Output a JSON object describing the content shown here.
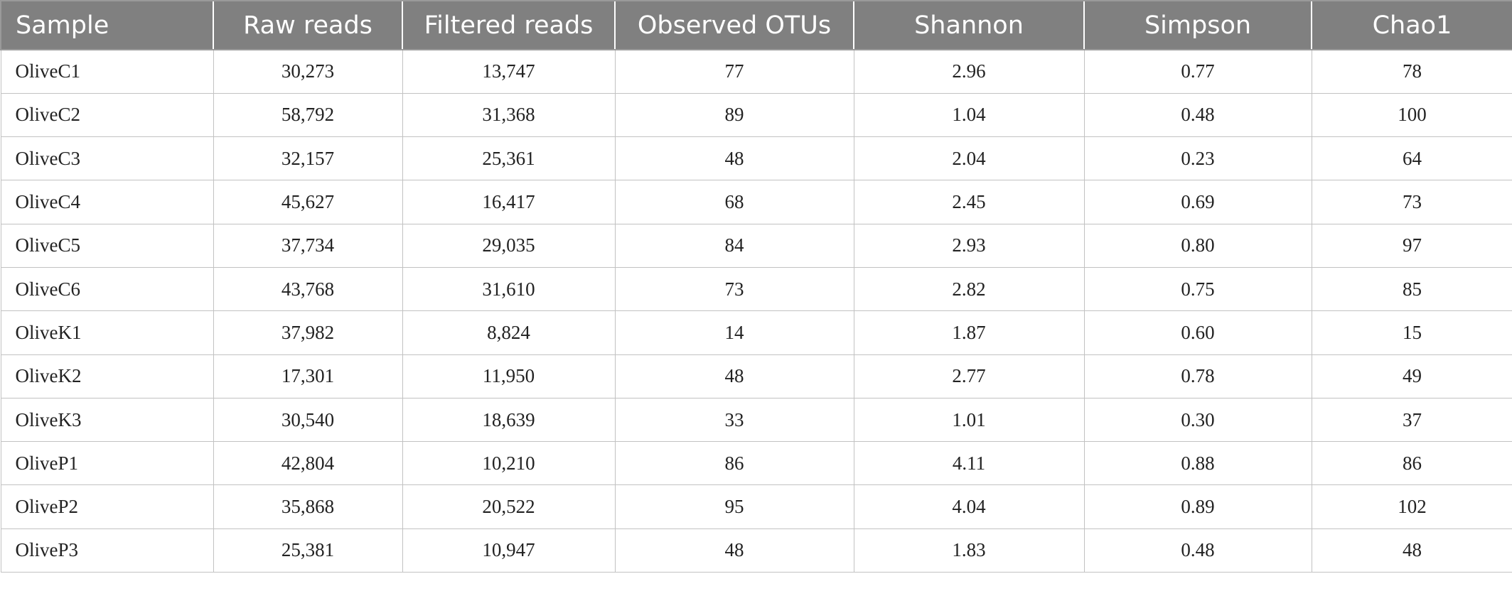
{
  "table": {
    "headers": [
      "Sample",
      "Raw reads",
      "Filtered reads",
      "Observed OTUs",
      "Shannon",
      "Simpson",
      "Chao1"
    ],
    "rows": [
      [
        "OliveC1",
        "30,273",
        "13,747",
        "77",
        "2.96",
        "0.77",
        "78"
      ],
      [
        "OliveC2",
        "58,792",
        "31,368",
        "89",
        "1.04",
        "0.48",
        "100"
      ],
      [
        "OliveC3",
        "32,157",
        "25,361",
        "48",
        "2.04",
        "0.23",
        "64"
      ],
      [
        "OliveC4",
        "45,627",
        "16,417",
        "68",
        "2.45",
        "0.69",
        "73"
      ],
      [
        "OliveC5",
        "37,734",
        "29,035",
        "84",
        "2.93",
        "0.80",
        "97"
      ],
      [
        "OliveC6",
        "43,768",
        "31,610",
        "73",
        "2.82",
        "0.75",
        "85"
      ],
      [
        "OliveK1",
        "37,982",
        "8,824",
        "14",
        "1.87",
        "0.60",
        "15"
      ],
      [
        "OliveK2",
        "17,301",
        "11,950",
        "48",
        "2.77",
        "0.78",
        "49"
      ],
      [
        "OliveK3",
        "30,540",
        "18,639",
        "33",
        "1.01",
        "0.30",
        "37"
      ],
      [
        "OliveP1",
        "42,804",
        "10,210",
        "86",
        "4.11",
        "0.88",
        "86"
      ],
      [
        "OliveP2",
        "35,868",
        "20,522",
        "95",
        "4.04",
        "0.89",
        "102"
      ],
      [
        "OliveP3",
        "25,381",
        "10,947",
        "48",
        "1.83",
        "0.48",
        "48"
      ]
    ]
  },
  "colors": {
    "header_bg": "#808080",
    "header_text": "#ffffff",
    "grid": "#c2c2c2"
  }
}
